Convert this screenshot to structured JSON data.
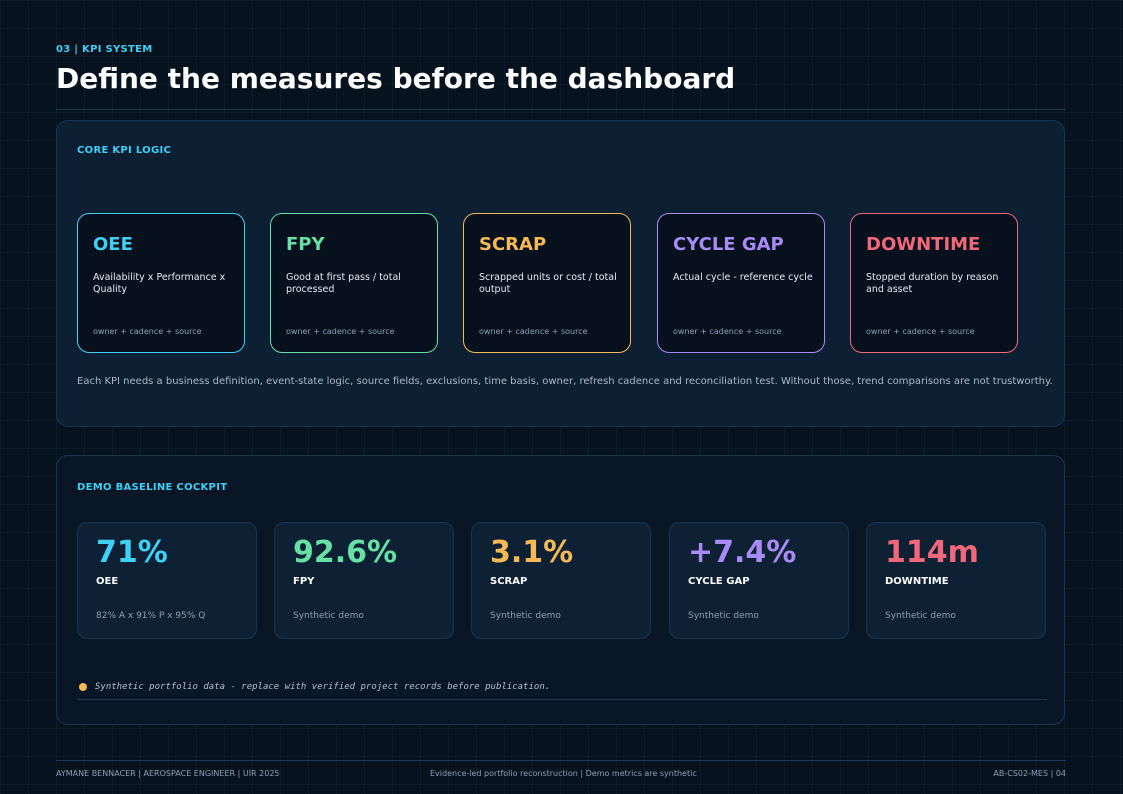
{
  "header": {
    "eyebrow": "03 | KPI SYSTEM",
    "title": "Define the measures before the dashboard"
  },
  "core_logic": {
    "label": "CORE KPI LOGIC",
    "cards": [
      {
        "name": "OEE",
        "definition": "Availability x Performance x Quality",
        "footer": "owner + cadence + source",
        "color": "#3fd0f5"
      },
      {
        "name": "FPY",
        "definition": "Good at first pass / total processed",
        "footer": "owner + cadence + source",
        "color": "#66e0a3"
      },
      {
        "name": "SCRAP",
        "definition": "Scrapped units or cost / total output",
        "footer": "owner + cadence + source",
        "color": "#f7b955"
      },
      {
        "name": "CYCLE GAP",
        "definition": "Actual cycle - reference cycle",
        "footer": "owner + cadence + source",
        "color": "#a98bf5"
      },
      {
        "name": "DOWNTIME",
        "definition": "Stopped duration by reason and asset",
        "footer": "owner + cadence + source",
        "color": "#f2687a"
      }
    ],
    "note": "Each KPI needs a business definition, event-state logic, source fields, exclusions, time basis, owner, refresh cadence and reconciliation test. Without those, trend comparisons are not trustworthy."
  },
  "cockpit": {
    "label": "DEMO BASELINE COCKPIT",
    "metrics": [
      {
        "value": "71%",
        "label": "OEE",
        "sub": "82% A x 91% P x 95% Q",
        "color": "#3fd0f5"
      },
      {
        "value": "92.6%",
        "label": "FPY",
        "sub": "Synthetic demo",
        "color": "#66e0a3"
      },
      {
        "value": "3.1%",
        "label": "SCRAP",
        "sub": "Synthetic demo",
        "color": "#f7b955"
      },
      {
        "value": "+7.4%",
        "label": "CYCLE GAP",
        "sub": "Synthetic demo",
        "color": "#a98bf5"
      },
      {
        "value": "114m",
        "label": "DOWNTIME",
        "sub": "Synthetic demo",
        "color": "#f2687a"
      }
    ],
    "disclaimer": "Synthetic portfolio data - replace with verified project records before publication.",
    "disclaimer_dot_color": "#f7b955"
  },
  "footer": {
    "left": "AYMANE BENNACER | AEROSPACE ENGINEER | UIR 2025",
    "center": "Evidence-led portfolio reconstruction | Demo metrics are synthetic",
    "right": "AB-CS02-MES | 04"
  }
}
